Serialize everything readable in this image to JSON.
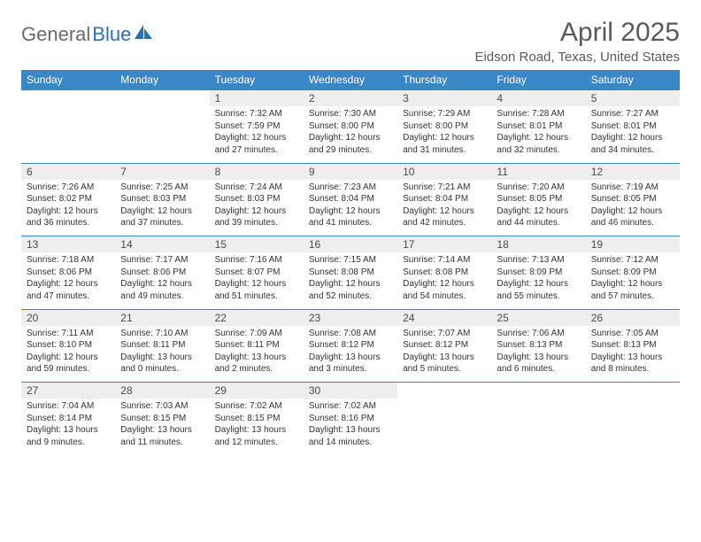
{
  "logo": {
    "text1": "General",
    "text2": "Blue"
  },
  "title": "April 2025",
  "location": "Eidson Road, Texas, United States",
  "colors": {
    "header_bg": "#3b86c6",
    "header_text": "#ffffff",
    "daynum_bg": "#eeeeee",
    "border": "#3b86c6",
    "body_text": "#333333",
    "title_text": "#5a5a5a",
    "logo_gray": "#6a6a6a",
    "logo_blue": "#2a71b8"
  },
  "weekdays": [
    "Sunday",
    "Monday",
    "Tuesday",
    "Wednesday",
    "Thursday",
    "Friday",
    "Saturday"
  ],
  "weeks": [
    [
      null,
      null,
      {
        "n": "1",
        "sr": "7:32 AM",
        "ss": "7:59 PM",
        "dl": "12 hours and 27 minutes."
      },
      {
        "n": "2",
        "sr": "7:30 AM",
        "ss": "8:00 PM",
        "dl": "12 hours and 29 minutes."
      },
      {
        "n": "3",
        "sr": "7:29 AM",
        "ss": "8:00 PM",
        "dl": "12 hours and 31 minutes."
      },
      {
        "n": "4",
        "sr": "7:28 AM",
        "ss": "8:01 PM",
        "dl": "12 hours and 32 minutes."
      },
      {
        "n": "5",
        "sr": "7:27 AM",
        "ss": "8:01 PM",
        "dl": "12 hours and 34 minutes."
      }
    ],
    [
      {
        "n": "6",
        "sr": "7:26 AM",
        "ss": "8:02 PM",
        "dl": "12 hours and 36 minutes."
      },
      {
        "n": "7",
        "sr": "7:25 AM",
        "ss": "8:03 PM",
        "dl": "12 hours and 37 minutes."
      },
      {
        "n": "8",
        "sr": "7:24 AM",
        "ss": "8:03 PM",
        "dl": "12 hours and 39 minutes."
      },
      {
        "n": "9",
        "sr": "7:23 AM",
        "ss": "8:04 PM",
        "dl": "12 hours and 41 minutes."
      },
      {
        "n": "10",
        "sr": "7:21 AM",
        "ss": "8:04 PM",
        "dl": "12 hours and 42 minutes."
      },
      {
        "n": "11",
        "sr": "7:20 AM",
        "ss": "8:05 PM",
        "dl": "12 hours and 44 minutes."
      },
      {
        "n": "12",
        "sr": "7:19 AM",
        "ss": "8:05 PM",
        "dl": "12 hours and 46 minutes."
      }
    ],
    [
      {
        "n": "13",
        "sr": "7:18 AM",
        "ss": "8:06 PM",
        "dl": "12 hours and 47 minutes."
      },
      {
        "n": "14",
        "sr": "7:17 AM",
        "ss": "8:06 PM",
        "dl": "12 hours and 49 minutes."
      },
      {
        "n": "15",
        "sr": "7:16 AM",
        "ss": "8:07 PM",
        "dl": "12 hours and 51 minutes."
      },
      {
        "n": "16",
        "sr": "7:15 AM",
        "ss": "8:08 PM",
        "dl": "12 hours and 52 minutes."
      },
      {
        "n": "17",
        "sr": "7:14 AM",
        "ss": "8:08 PM",
        "dl": "12 hours and 54 minutes."
      },
      {
        "n": "18",
        "sr": "7:13 AM",
        "ss": "8:09 PM",
        "dl": "12 hours and 55 minutes."
      },
      {
        "n": "19",
        "sr": "7:12 AM",
        "ss": "8:09 PM",
        "dl": "12 hours and 57 minutes."
      }
    ],
    [
      {
        "n": "20",
        "sr": "7:11 AM",
        "ss": "8:10 PM",
        "dl": "12 hours and 59 minutes."
      },
      {
        "n": "21",
        "sr": "7:10 AM",
        "ss": "8:11 PM",
        "dl": "13 hours and 0 minutes."
      },
      {
        "n": "22",
        "sr": "7:09 AM",
        "ss": "8:11 PM",
        "dl": "13 hours and 2 minutes."
      },
      {
        "n": "23",
        "sr": "7:08 AM",
        "ss": "8:12 PM",
        "dl": "13 hours and 3 minutes."
      },
      {
        "n": "24",
        "sr": "7:07 AM",
        "ss": "8:12 PM",
        "dl": "13 hours and 5 minutes."
      },
      {
        "n": "25",
        "sr": "7:06 AM",
        "ss": "8:13 PM",
        "dl": "13 hours and 6 minutes."
      },
      {
        "n": "26",
        "sr": "7:05 AM",
        "ss": "8:13 PM",
        "dl": "13 hours and 8 minutes."
      }
    ],
    [
      {
        "n": "27",
        "sr": "7:04 AM",
        "ss": "8:14 PM",
        "dl": "13 hours and 9 minutes."
      },
      {
        "n": "28",
        "sr": "7:03 AM",
        "ss": "8:15 PM",
        "dl": "13 hours and 11 minutes."
      },
      {
        "n": "29",
        "sr": "7:02 AM",
        "ss": "8:15 PM",
        "dl": "13 hours and 12 minutes."
      },
      {
        "n": "30",
        "sr": "7:02 AM",
        "ss": "8:16 PM",
        "dl": "13 hours and 14 minutes."
      },
      null,
      null,
      null
    ]
  ],
  "labels": {
    "sunrise": "Sunrise:",
    "sunset": "Sunset:",
    "daylight": "Daylight:"
  }
}
